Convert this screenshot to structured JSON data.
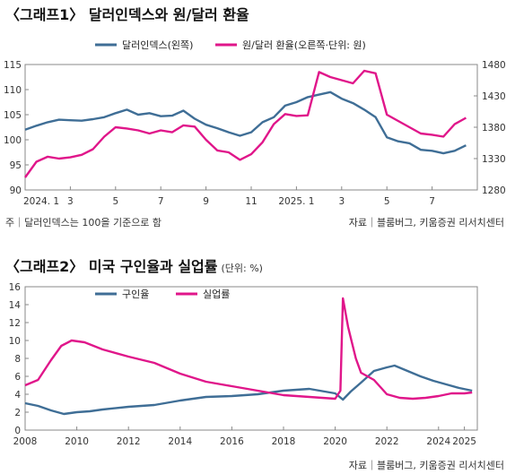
{
  "chart1": {
    "title": "〈그래프1〉 달러인덱스와 원/달러 환율",
    "note": "주｜달러인덱스는 100을 기준으로 함",
    "source": "자료｜블룸버그, 키움증권 리서치센터",
    "colors": {
      "left": "#3f6e96",
      "right": "#e0168a"
    },
    "chart_data": {
      "type": "line",
      "legend": [
        "달러인덱스(왼쪽)",
        "원/달러 환율(오른쪽·단위: 원)"
      ],
      "legend_position": "top",
      "grid": false,
      "x_ticks": [
        "2024. 1",
        "3",
        "5",
        "7",
        "9",
        "11",
        "2025. 1",
        "3",
        "5",
        "7"
      ],
      "x_range": [
        0,
        20
      ],
      "y_left": {
        "range": [
          90,
          115
        ],
        "ticks": [
          "90",
          "95",
          "100",
          "105",
          "110",
          "115"
        ]
      },
      "y_right": {
        "range": [
          1280,
          1480
        ],
        "ticks": [
          "1280",
          "1330",
          "1380",
          "1430",
          "1480"
        ]
      },
      "series": [
        {
          "name": "달러인덱스(왼쪽)",
          "axis": "left",
          "x": [
            0,
            0.5,
            1,
            1.5,
            2,
            2.5,
            3,
            3.5,
            4,
            4.5,
            5,
            5.5,
            6,
            6.5,
            7,
            7.5,
            8,
            8.5,
            9,
            9.5,
            10,
            10.5,
            11,
            11.5,
            12,
            12.5,
            13,
            13.5,
            14,
            14.5,
            15,
            15.5,
            16,
            16.5,
            17,
            17.5,
            18,
            18.5,
            19,
            19.5
          ],
          "y": [
            102,
            102.8,
            103.5,
            104,
            103.9,
            103.8,
            104.1,
            104.5,
            105.3,
            106,
            105,
            105.3,
            104.7,
            104.8,
            105.8,
            104.2,
            103,
            102.3,
            101.5,
            100.8,
            101.5,
            103.5,
            104.5,
            106.8,
            107.5,
            108.5,
            109,
            109.5,
            108.2,
            107.3,
            106,
            104.5,
            100.5,
            99.7,
            99.3,
            98,
            97.8,
            97.3,
            97.8,
            98.9
          ]
        },
        {
          "name": "원/달러 환율(오른쪽·단위: 원)",
          "axis": "right",
          "x": [
            0,
            0.5,
            1,
            1.5,
            2,
            2.5,
            3,
            3.5,
            4,
            4.5,
            5,
            5.5,
            6,
            6.5,
            7,
            7.5,
            8,
            8.5,
            9,
            9.5,
            10,
            10.5,
            11,
            11.5,
            12,
            12.5,
            13,
            13.5,
            14,
            14.5,
            15,
            15.5,
            16,
            16.5,
            17,
            17.5,
            18,
            18.5,
            19,
            19.5
          ],
          "y": [
            1300,
            1325,
            1333,
            1330,
            1332,
            1336,
            1345,
            1365,
            1380,
            1378,
            1375,
            1370,
            1375,
            1372,
            1383,
            1381,
            1360,
            1343,
            1340,
            1328,
            1337,
            1356,
            1385,
            1401,
            1398,
            1399,
            1468,
            1460,
            1455,
            1450,
            1470,
            1466,
            1400,
            1390,
            1380,
            1370,
            1368,
            1365,
            1385,
            1395
          ]
        }
      ]
    }
  },
  "chart2": {
    "title": "〈그래프2〉 미국 구인율과 실업률",
    "unit": "(단위: %)",
    "source": "자료｜블룸버그, 키움증권 리서치센터",
    "colors": {
      "job": "#3f6e96",
      "unemp": "#e0168a"
    },
    "chart_data": {
      "type": "line",
      "legend": [
        "구인율",
        "실업률"
      ],
      "legend_position": "top",
      "grid": false,
      "x_ticks": [
        "2008",
        "2010",
        "2012",
        "2014",
        "2016",
        "2018",
        "2020",
        "2022",
        "2024",
        "2025"
      ],
      "x_tick_values": [
        2008,
        2010,
        2012,
        2014,
        2016,
        2018,
        2020,
        2022,
        2024,
        2025
      ],
      "x_range": [
        2008,
        2025.5
      ],
      "y_range": [
        0,
        16
      ],
      "y_ticks": [
        "0",
        "2",
        "4",
        "6",
        "8",
        "10",
        "12",
        "14",
        "16"
      ],
      "series": [
        {
          "name": "구인율",
          "x": [
            2008,
            2008.5,
            2009,
            2009.5,
            2010,
            2010.5,
            2011,
            2012,
            2013,
            2014,
            2015,
            2016,
            2017,
            2018,
            2019,
            2020,
            2020.3,
            2020.6,
            2021,
            2021.5,
            2022,
            2022.3,
            2022.8,
            2023.3,
            2023.8,
            2024.3,
            2024.8,
            2025.3
          ],
          "y": [
            3,
            2.7,
            2.2,
            1.8,
            2,
            2.1,
            2.3,
            2.6,
            2.8,
            3.3,
            3.7,
            3.8,
            4,
            4.4,
            4.6,
            4.1,
            3.4,
            4.3,
            5.3,
            6.6,
            7,
            7.2,
            6.6,
            6,
            5.5,
            5.1,
            4.7,
            4.4
          ]
        },
        {
          "name": "실업률",
          "x": [
            2008,
            2008.5,
            2009,
            2009.4,
            2009.8,
            2010.3,
            2011,
            2012,
            2013,
            2014,
            2015,
            2016,
            2017,
            2018,
            2019,
            2020,
            2020.2,
            2020.3,
            2020.5,
            2020.8,
            2021,
            2021.5,
            2022,
            2022.5,
            2023,
            2023.5,
            2024,
            2024.5,
            2025,
            2025.3
          ],
          "y": [
            5,
            5.6,
            7.8,
            9.4,
            10,
            9.8,
            9,
            8.2,
            7.5,
            6.3,
            5.4,
            4.9,
            4.4,
            3.9,
            3.7,
            3.5,
            4.4,
            14.7,
            11.5,
            8,
            6.4,
            5.6,
            4,
            3.6,
            3.5,
            3.6,
            3.8,
            4.1,
            4.1,
            4.2
          ]
        }
      ]
    }
  }
}
